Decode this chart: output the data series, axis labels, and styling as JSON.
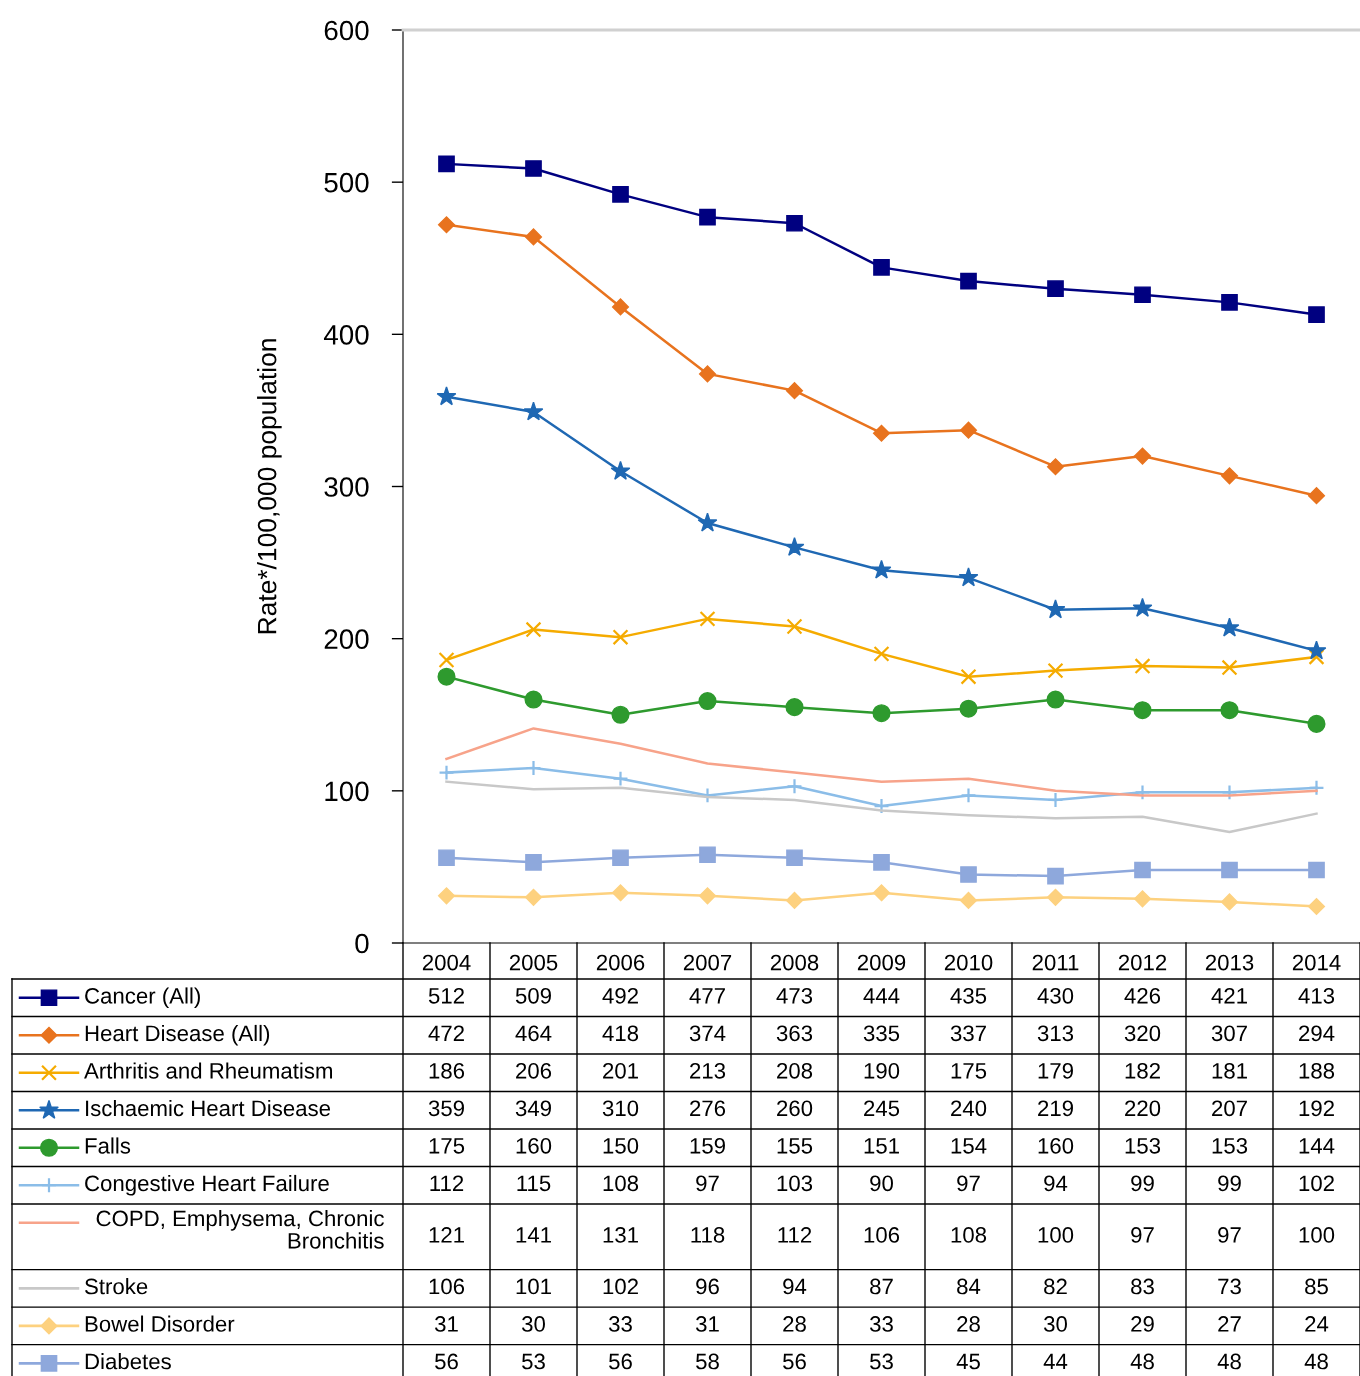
{
  "chart_data": {
    "type": "line",
    "ylabel": "Rate*/100,000 population",
    "categories": [
      "2004",
      "2005",
      "2006",
      "2007",
      "2008",
      "2009",
      "2010",
      "2011",
      "2012",
      "2013",
      "2014"
    ],
    "ylim": [
      0,
      600
    ],
    "yticks": [
      0,
      100,
      200,
      300,
      400,
      500,
      600
    ],
    "grid": false,
    "legend": "bottom",
    "data_labels": true,
    "series": [
      {
        "name": "Cancer (All)",
        "color": "#000080",
        "marker": "square",
        "values": [
          512,
          509,
          492,
          477,
          473,
          444,
          435,
          430,
          426,
          421,
          413
        ]
      },
      {
        "name": "Heart Disease (All)",
        "color": "#e8731e",
        "marker": "diamond",
        "values": [
          472,
          464,
          418,
          374,
          363,
          335,
          337,
          313,
          320,
          307,
          294
        ]
      },
      {
        "name": "Arthritis and Rheumatism",
        "color": "#f5ab00",
        "marker": "cross",
        "values": [
          186,
          206,
          201,
          213,
          208,
          190,
          175,
          179,
          182,
          181,
          188
        ]
      },
      {
        "name": "Ischaemic Heart Disease",
        "color": "#1f68b3",
        "marker": "star",
        "values": [
          359,
          349,
          310,
          276,
          260,
          245,
          240,
          219,
          220,
          207,
          192
        ]
      },
      {
        "name": "Falls",
        "color": "#2e9a2e",
        "marker": "circle",
        "values": [
          175,
          160,
          150,
          159,
          155,
          151,
          154,
          160,
          153,
          153,
          144
        ]
      },
      {
        "name": "Congestive Heart Failure",
        "color": "#8bbde8",
        "marker": "plus",
        "values": [
          112,
          115,
          108,
          97,
          103,
          90,
          97,
          94,
          99,
          99,
          102
        ]
      },
      {
        "name": "COPD, Emphysema, Chronic\nBronchitis",
        "color": "#f7a38a",
        "marker": "none",
        "values": [
          121,
          141,
          131,
          118,
          112,
          106,
          108,
          100,
          97,
          97,
          100
        ]
      },
      {
        "name": "Stroke",
        "color": "#c8c8c8",
        "marker": "none",
        "values": [
          106,
          101,
          102,
          96,
          94,
          87,
          84,
          82,
          83,
          73,
          85
        ]
      },
      {
        "name": "Bowel Disorder",
        "color": "#fdd17f",
        "marker": "diamond",
        "values": [
          31,
          30,
          33,
          31,
          28,
          33,
          28,
          30,
          29,
          27,
          24
        ]
      },
      {
        "name": "Diabetes",
        "color": "#8ea8dc",
        "marker": "square",
        "values": [
          56,
          53,
          56,
          58,
          56,
          53,
          45,
          44,
          48,
          48,
          48
        ]
      }
    ]
  }
}
